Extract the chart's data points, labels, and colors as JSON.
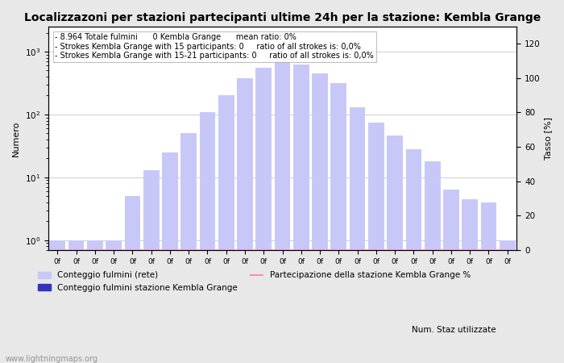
{
  "title": "Localizzazoni per stazioni partecipanti ultime 24h per la stazione: Kembla Grange",
  "ylabel_left": "Numero",
  "ylabel_right": "Tasso [%]",
  "annotation_lines": [
    "- 8.964 Totale fulmini      0 Kembla Grange      mean ratio: 0%",
    "- Strokes Kembla Grange with 15 participants: 0     ratio of all strokes is: 0,0%",
    "- Strokes Kembla Grange with 15-21 participants: 0     ratio of all strokes is: 0,0%"
  ],
  "x_labels": [
    "0f",
    "0f",
    "0f",
    "0f",
    "0f",
    "0f",
    "0f",
    "0f",
    "0f",
    "0f",
    "0f",
    "0f",
    "0f",
    "0f",
    "0f",
    "0f",
    "0f",
    "0f",
    "0f",
    "0f",
    "0f",
    "0f",
    "0f",
    "0f",
    "0f"
  ],
  "bar_values": [
    1,
    1,
    1,
    1,
    5,
    13,
    25,
    50,
    110,
    200,
    380,
    550,
    950,
    620,
    450,
    320,
    130,
    75,
    47,
    28,
    18,
    6.5,
    4.5,
    4,
    1
  ],
  "bar_color": "#c8c8f8",
  "bar_dark_values": [
    0,
    0,
    0,
    0,
    0,
    0,
    0,
    0,
    0,
    0,
    0,
    0,
    0,
    0,
    0,
    0,
    0,
    0,
    0,
    0,
    0,
    0,
    0,
    0,
    0
  ],
  "bar_dark_color": "#3333bb",
  "line_values": [
    0,
    0,
    0,
    0,
    0,
    0,
    0,
    0,
    0,
    0,
    0,
    0,
    0,
    0,
    0,
    0,
    0,
    0,
    0,
    0,
    0,
    0,
    0,
    0,
    0
  ],
  "line_color": "#ff88cc",
  "ylim_right": [
    0,
    130
  ],
  "background_color": "#e8e8e8",
  "plot_bg_color": "#ffffff",
  "grid_color": "#bbbbbb",
  "legend_items": [
    {
      "label": "Conteggio fulmini (rete)",
      "color": "#c8c8f8",
      "type": "bar"
    },
    {
      "label": "Conteggio fulmini stazione Kembla Grange",
      "color": "#3333bb",
      "type": "bar"
    },
    {
      "label": "Partecipazione della stazione Kembla Grange %",
      "color": "#ff88cc",
      "type": "line"
    }
  ],
  "right_extra_label": "Num. Staz utilizzate",
  "watermark": "www.lightningmaps.org",
  "title_fontsize": 10,
  "annotation_fontsize": 7
}
